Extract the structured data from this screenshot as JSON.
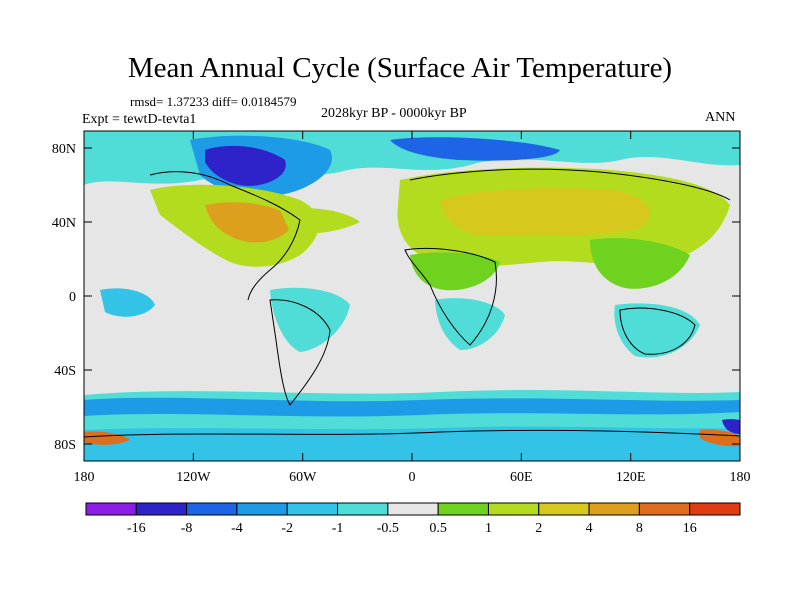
{
  "title": "Mean Annual Cycle (Surface Air Temperature)",
  "stats": "rmsd= 1.37233 diff= 0.0184579",
  "period": "2028kyr BP - 0000kyr BP",
  "experiment": "Expt = tewtD-tevta1",
  "season": "ANN",
  "lat_ticks": [
    "80N",
    "40N",
    "0",
    "40S",
    "80S"
  ],
  "lon_ticks": [
    "180",
    "120W",
    "60W",
    "0",
    "60E",
    "120E",
    "180"
  ],
  "colorbar": {
    "labels": [
      "-16",
      "-8",
      "-4",
      "-2",
      "-1",
      "-0.5",
      "0.5",
      "1",
      "2",
      "4",
      "8",
      "16"
    ],
    "colors": [
      "#8a1ee6",
      "#2d23c8",
      "#1e64e6",
      "#1e9be6",
      "#32c3e6",
      "#50dcd7",
      "#e6e6e6",
      "#6ed21e",
      "#b4dc1e",
      "#d7c81e",
      "#dca01e",
      "#dc6e1e",
      "#e03c14"
    ]
  }
}
